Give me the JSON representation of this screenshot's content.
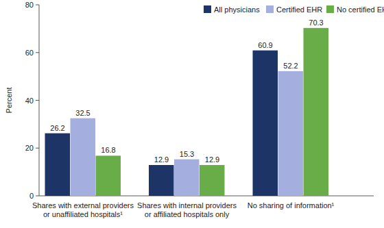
{
  "chart_data": {
    "type": "bar",
    "y_label": "Percent",
    "categories": [
      "Shares with external providers\nor unaffiliated hospitals¹",
      "Shares with internal providers\nor affiliated hospitals only",
      "No sharing of information¹"
    ],
    "series": [
      {
        "name": "All physicians",
        "color": "#1c3466",
        "values": [
          26.2,
          12.9,
          60.9
        ]
      },
      {
        "name": "Certified EHR",
        "color": "#a4afdf",
        "values": [
          32.5,
          15.3,
          52.2
        ]
      },
      {
        "name": "No certified EHR",
        "color": "#69ad48",
        "values": [
          16.8,
          12.9,
          70.3
        ]
      }
    ],
    "ylim": [
      0,
      80
    ],
    "yticks": [
      0,
      20,
      40,
      60,
      80
    ],
    "grid": false,
    "legend": "top",
    "data_labels": true
  }
}
